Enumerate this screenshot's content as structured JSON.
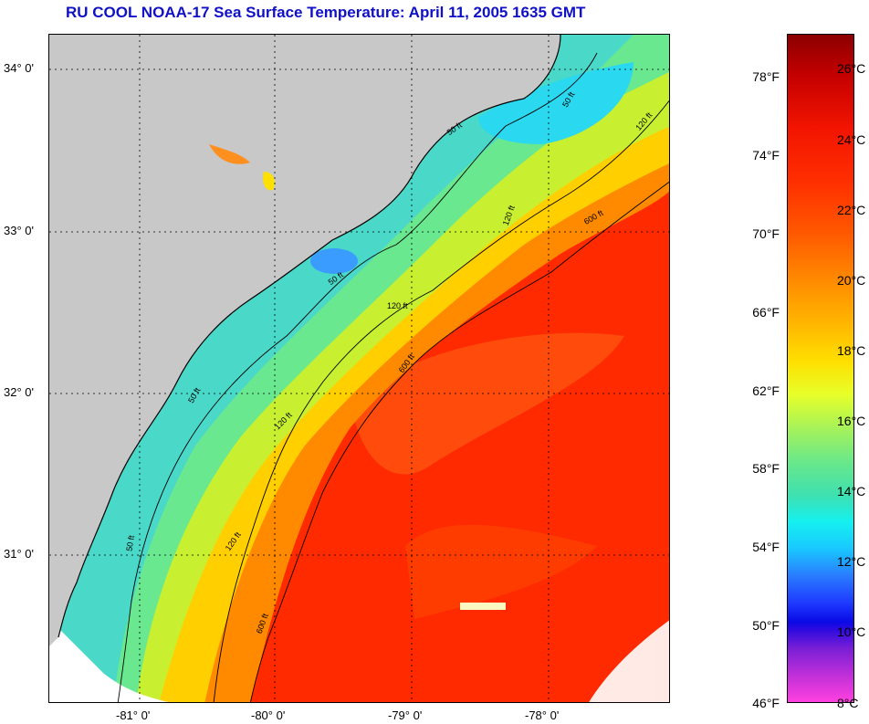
{
  "title": "RU COOL  NOAA-17  Sea Surface Temperature:  April 11, 2005 1635 GMT",
  "map": {
    "latitude_labels": [
      "34° 0'",
      "33° 0'",
      "32° 0'",
      "31° 0'"
    ],
    "longitude_labels": [
      "-81° 0'",
      "-80° 0'",
      "-79° 0'",
      "-78° 0'"
    ],
    "contour_labels": [
      "50 ft",
      "120 ft",
      "600 ft",
      "50 ft",
      "120 ft",
      "600 ft",
      "50 ft",
      "120 ft",
      "600 ft",
      "50 ft",
      "120 ft",
      "50 ft",
      "120 ft"
    ],
    "colors": {
      "land": "#c8c8c8",
      "no_data": "#ffffff",
      "gulf_stream": "#ff2a00",
      "shelf_warm": "#ffd000",
      "shelf_cool": "#5ee0a0",
      "nearshore": "#4ed6d0"
    }
  },
  "colorbar": {
    "fahrenheit": [
      "78°F",
      "74°F",
      "70°F",
      "66°F",
      "62°F",
      "58°F",
      "54°F",
      "50°F",
      "46°F"
    ],
    "celsius": [
      "26°C",
      "24°C",
      "22°C",
      "20°C",
      "18°C",
      "16°C",
      "14°C",
      "12°C",
      "10°C",
      "8°C"
    ]
  }
}
